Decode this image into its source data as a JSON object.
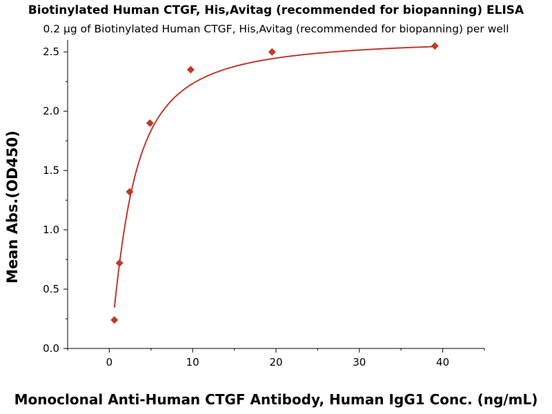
{
  "chart_data": {
    "type": "scatter",
    "title": "Biotinylated Human CTGF, His,Avitag (recommended for biopanning) ELISA",
    "subtitle": "0.2 μg of Biotinylated Human CTGF, His,Avitag (recommended for biopanning) per well",
    "xlabel": "Monoclonal Anti-Human CTGF Antibody, Human IgG1 Conc. (ng/mL)",
    "ylabel": "Mean Abs.(OD450)",
    "xlim": [
      -5,
      45
    ],
    "ylim": [
      0,
      2.6
    ],
    "xticks": [
      0,
      10,
      20,
      30,
      40
    ],
    "xtick_labels": [
      "0",
      "10",
      "20",
      "30",
      "40"
    ],
    "yticks": [
      0.0,
      0.5,
      1.0,
      1.5,
      2.0,
      2.5
    ],
    "ytick_labels": [
      "0.0",
      "0.5",
      "1.0",
      "1.5",
      "2.0",
      "2.5"
    ],
    "grid": false,
    "series": [
      {
        "name": "Mean Abs.(OD450)",
        "marker": "diamond",
        "color": "#C0392B",
        "x": [
          0.61,
          1.22,
          2.44,
          4.88,
          9.77,
          19.53,
          39.06
        ],
        "y": [
          0.24,
          0.72,
          1.32,
          1.9,
          2.35,
          2.5,
          2.55
        ]
      }
    ],
    "fit_curve": {
      "color": "#C0392B",
      "model": "4PL",
      "bottom": 0.0,
      "top": 2.62,
      "ec50": 2.6,
      "hill": 1.3
    }
  }
}
